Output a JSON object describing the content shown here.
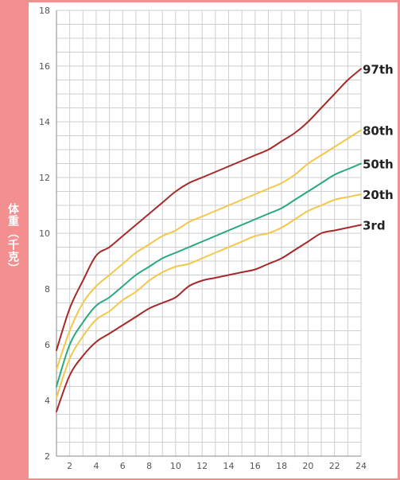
{
  "chart_data": {
    "type": "line",
    "title": "",
    "xlabel": "",
    "ylabel": "体重（千克）",
    "xlim": [
      1,
      24
    ],
    "ylim": [
      2,
      18
    ],
    "x_ticks": [
      2,
      4,
      6,
      8,
      10,
      12,
      14,
      16,
      18,
      20,
      22,
      24
    ],
    "y_ticks": [
      2,
      4,
      6,
      8,
      10,
      12,
      14,
      16,
      18
    ],
    "x_minor_step": 1,
    "y_minor_step": 0.5,
    "grid": true,
    "x": [
      1,
      2,
      3,
      4,
      5,
      6,
      7,
      8,
      9,
      10,
      11,
      12,
      13,
      14,
      15,
      16,
      17,
      18,
      19,
      20,
      21,
      22,
      23,
      24
    ],
    "series": [
      {
        "name": "97th",
        "color": "#a52a2a",
        "values": [
          5.8,
          7.3,
          8.3,
          9.2,
          9.5,
          9.9,
          10.3,
          10.7,
          11.1,
          11.5,
          11.8,
          12.0,
          12.2,
          12.4,
          12.6,
          12.8,
          13.0,
          13.3,
          13.6,
          14.0,
          14.5,
          15.0,
          15.5,
          15.9
        ]
      },
      {
        "name": "80th",
        "color": "#f2c84b",
        "values": [
          5.1,
          6.5,
          7.5,
          8.1,
          8.5,
          8.9,
          9.3,
          9.6,
          9.9,
          10.1,
          10.4,
          10.6,
          10.8,
          11.0,
          11.2,
          11.4,
          11.6,
          11.8,
          12.1,
          12.5,
          12.8,
          13.1,
          13.4,
          13.7
        ]
      },
      {
        "name": "50th",
        "color": "#2aa97f",
        "values": [
          4.5,
          6.0,
          6.8,
          7.4,
          7.7,
          8.1,
          8.5,
          8.8,
          9.1,
          9.3,
          9.5,
          9.7,
          9.9,
          10.1,
          10.3,
          10.5,
          10.7,
          10.9,
          11.2,
          11.5,
          11.8,
          12.1,
          12.3,
          12.5
        ]
      },
      {
        "name": "20th",
        "color": "#f2c84b",
        "values": [
          4.1,
          5.5,
          6.3,
          6.9,
          7.2,
          7.6,
          7.9,
          8.3,
          8.6,
          8.8,
          8.9,
          9.1,
          9.3,
          9.5,
          9.7,
          9.9,
          10.0,
          10.2,
          10.5,
          10.8,
          11.0,
          11.2,
          11.3,
          11.4
        ]
      },
      {
        "name": "3rd",
        "color": "#a52a2a",
        "values": [
          3.6,
          4.9,
          5.6,
          6.1,
          6.4,
          6.7,
          7.0,
          7.3,
          7.5,
          7.7,
          8.1,
          8.3,
          8.4,
          8.5,
          8.6,
          8.7,
          8.9,
          9.1,
          9.4,
          9.7,
          10.0,
          10.1,
          10.2,
          10.3
        ]
      }
    ]
  }
}
